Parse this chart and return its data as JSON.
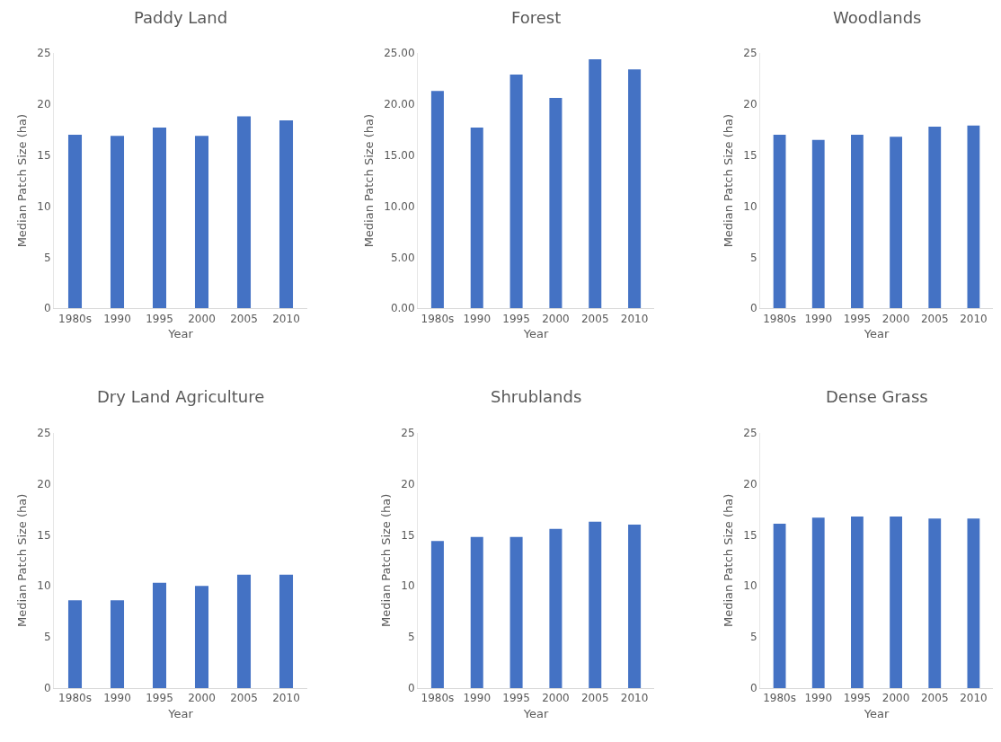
{
  "chart_data": [
    {
      "type": "bar",
      "title": "Paddy Land",
      "xlabel": "Year",
      "ylabel": "Median Patch Size (ha)",
      "categories": [
        "1980s",
        "1990",
        "1995",
        "2000",
        "2005",
        "2010"
      ],
      "values": [
        17.0,
        16.9,
        17.7,
        16.9,
        18.8,
        18.4
      ],
      "color": "#4472c4",
      "ylim": [
        0,
        25
      ],
      "yticks": [
        0,
        5,
        10,
        15,
        20,
        25
      ],
      "grid": false
    },
    {
      "type": "bar",
      "title": "Forest",
      "xlabel": "Year",
      "ylabel": "Median Patch Size (ha)",
      "categories": [
        "1980s",
        "1990",
        "1995",
        "2000",
        "2005",
        "2010"
      ],
      "values": [
        21.3,
        17.7,
        22.9,
        20.6,
        24.4,
        23.4
      ],
      "color": "#4472c4",
      "ylim": [
        0,
        25
      ],
      "yticks": [
        {
          "value": 0,
          "label": "0.00"
        },
        {
          "value": 5,
          "label": "5.00"
        },
        {
          "value": 10,
          "label": "10.00"
        },
        {
          "value": 15,
          "label": "15.00"
        },
        {
          "value": 20,
          "label": "20.00"
        },
        {
          "value": 25,
          "label": "25.00"
        }
      ],
      "grid": false
    },
    {
      "type": "bar",
      "title": "Woodlands",
      "xlabel": "Year",
      "ylabel": "Median Patch Size (ha)",
      "categories": [
        "1980s",
        "1990",
        "1995",
        "2000",
        "2005",
        "2010"
      ],
      "values": [
        17.0,
        16.5,
        17.0,
        16.8,
        17.8,
        17.9
      ],
      "color": "#4472c4",
      "ylim": [
        0,
        25
      ],
      "yticks": [
        0,
        5,
        10,
        15,
        20,
        25
      ],
      "grid": false
    },
    {
      "type": "bar",
      "title": "Dry Land Agriculture",
      "xlabel": "Year",
      "ylabel": "Median Patch Size (ha)",
      "categories": [
        "1980s",
        "1990",
        "1995",
        "2000",
        "2005",
        "2010"
      ],
      "values": [
        8.6,
        8.6,
        10.3,
        10.0,
        11.1,
        11.1
      ],
      "color": "#4472c4",
      "ylim": [
        0,
        25
      ],
      "yticks": [
        0,
        5,
        10,
        15,
        20,
        25
      ],
      "grid": false
    },
    {
      "type": "bar",
      "title": "Shrublands",
      "xlabel": "Year",
      "ylabel": "Median Patch Size (ha)",
      "categories": [
        "1980s",
        "1990",
        "1995",
        "2000",
        "2005",
        "2010"
      ],
      "values": [
        14.4,
        14.8,
        14.8,
        15.6,
        16.3,
        16.0
      ],
      "color": "#4472c4",
      "ylim": [
        0,
        25
      ],
      "yticks": [
        0,
        5,
        10,
        15,
        20,
        25
      ],
      "grid": false
    },
    {
      "type": "bar",
      "title": "Dense Grass",
      "xlabel": "Year",
      "ylabel": "Median Patch Size (ha)",
      "categories": [
        "1980s",
        "1990",
        "1995",
        "2000",
        "2005",
        "2010"
      ],
      "values": [
        16.1,
        16.7,
        16.8,
        16.8,
        16.6,
        16.6
      ],
      "color": "#4472c4",
      "ylim": [
        0,
        25
      ],
      "yticks": [
        0,
        5,
        10,
        15,
        20,
        25
      ],
      "grid": false
    }
  ]
}
